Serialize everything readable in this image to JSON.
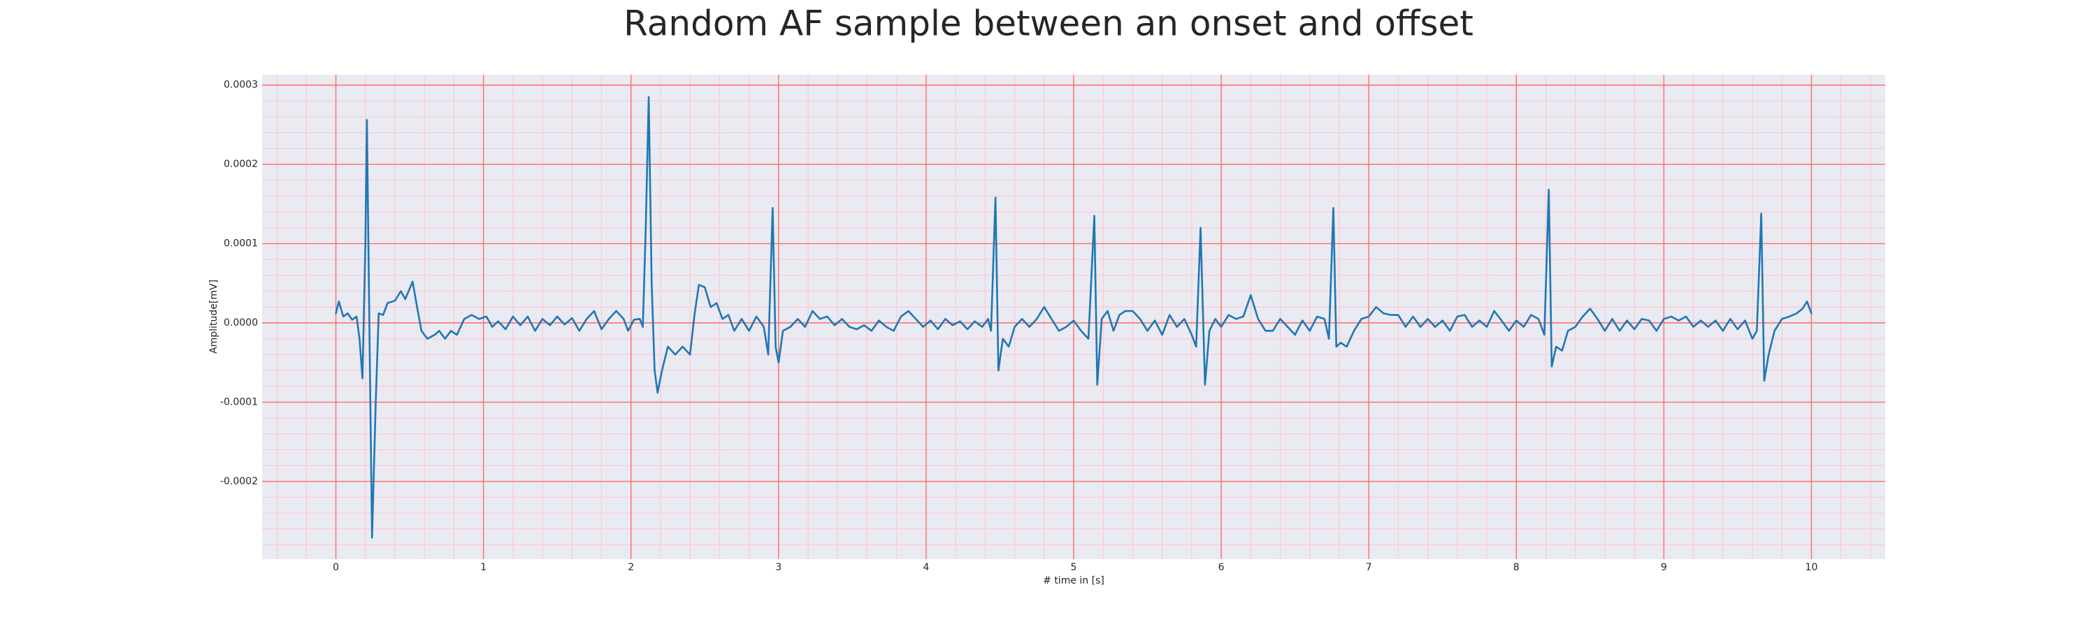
{
  "chart_data": {
    "type": "line",
    "title": "Random AF sample between an onset and offset",
    "xlabel": "# time in [s]",
    "ylabel": "Amplitude[mV]",
    "color": "#1f77b4",
    "grid": true,
    "minor_grid": true,
    "major_grid_color": "#ff6b6b",
    "minor_grid_color": "#ffc4cc",
    "background": "#eaeaf2",
    "xlim": [
      -0.5,
      10.5
    ],
    "ylim": [
      -0.000298,
      0.000313
    ],
    "xticks": [
      0,
      1,
      2,
      3,
      4,
      5,
      6,
      7,
      8,
      9,
      10
    ],
    "yticks": [
      -0.0002,
      -0.0001,
      {
        "value": 0,
        "label": "0.0000"
      },
      0.0001,
      0.0002,
      0.0003
    ],
    "xminorticks": [
      -0.4,
      -0.2,
      0.2,
      0.4,
      0.6,
      0.8,
      1.2,
      1.4,
      1.6,
      1.8,
      2.2,
      2.4,
      2.6,
      2.8,
      3.2,
      3.4,
      3.6,
      3.8,
      4.2,
      4.4,
      4.6,
      4.8,
      5.2,
      5.4,
      5.6,
      5.8,
      6.2,
      6.4,
      6.6,
      6.8,
      7.2,
      7.4,
      7.6,
      7.8,
      8.2,
      8.4,
      8.6,
      8.8,
      9.2,
      9.4,
      9.6,
      9.8,
      10.2,
      10.4
    ],
    "yminorticks": [
      -0.00028,
      -0.00026,
      -0.00024,
      -0.00022,
      -0.00018,
      -0.00016,
      -0.00014,
      -0.00012,
      -8e-05,
      -6e-05,
      -4e-05,
      -2e-05,
      2e-05,
      4e-05,
      6e-05,
      8e-05,
      0.00012,
      0.00014,
      0.00016,
      0.00018,
      0.00022,
      0.00024,
      0.00026,
      0.00028
    ],
    "x": [
      0.0,
      0.02,
      0.05,
      0.08,
      0.11,
      0.14,
      0.16,
      0.18,
      0.2,
      0.21,
      0.23,
      0.245,
      0.27,
      0.29,
      0.32,
      0.35,
      0.4,
      0.44,
      0.47,
      0.52,
      0.55,
      0.58,
      0.62,
      0.67,
      0.7,
      0.74,
      0.78,
      0.82,
      0.87,
      0.92,
      0.97,
      1.02,
      1.06,
      1.1,
      1.15,
      1.2,
      1.25,
      1.3,
      1.35,
      1.4,
      1.45,
      1.5,
      1.55,
      1.6,
      1.65,
      1.7,
      1.75,
      1.8,
      1.85,
      1.9,
      1.95,
      1.98,
      2.02,
      2.06,
      2.08,
      2.1,
      2.12,
      2.14,
      2.16,
      2.18,
      2.21,
      2.25,
      2.3,
      2.35,
      2.4,
      2.43,
      2.46,
      2.5,
      2.54,
      2.58,
      2.62,
      2.66,
      2.7,
      2.75,
      2.8,
      2.85,
      2.9,
      2.93,
      2.96,
      2.98,
      3.0,
      3.03,
      3.08,
      3.13,
      3.18,
      3.23,
      3.28,
      3.33,
      3.38,
      3.43,
      3.48,
      3.53,
      3.58,
      3.63,
      3.68,
      3.73,
      3.78,
      3.83,
      3.88,
      3.93,
      3.98,
      4.03,
      4.08,
      4.13,
      4.18,
      4.23,
      4.28,
      4.33,
      4.38,
      4.42,
      4.44,
      4.47,
      4.49,
      4.52,
      4.56,
      4.6,
      4.65,
      4.7,
      4.75,
      4.8,
      4.85,
      4.9,
      4.95,
      5.0,
      5.05,
      5.1,
      5.14,
      5.16,
      5.19,
      5.23,
      5.27,
      5.31,
      5.35,
      5.4,
      5.45,
      5.5,
      5.55,
      5.6,
      5.65,
      5.7,
      5.75,
      5.8,
      5.83,
      5.86,
      5.89,
      5.92,
      5.96,
      6.0,
      6.05,
      6.1,
      6.15,
      6.2,
      6.25,
      6.3,
      6.35,
      6.4,
      6.45,
      6.5,
      6.55,
      6.6,
      6.65,
      6.7,
      6.73,
      6.76,
      6.78,
      6.81,
      6.85,
      6.9,
      6.95,
      7.0,
      7.05,
      7.1,
      7.15,
      7.2,
      7.25,
      7.3,
      7.35,
      7.4,
      7.45,
      7.5,
      7.55,
      7.6,
      7.65,
      7.7,
      7.75,
      7.8,
      7.85,
      7.9,
      7.95,
      8.0,
      8.05,
      8.1,
      8.15,
      8.19,
      8.22,
      8.24,
      8.27,
      8.31,
      8.35,
      8.4,
      8.45,
      8.5,
      8.55,
      8.6,
      8.65,
      8.7,
      8.75,
      8.8,
      8.85,
      8.9,
      8.95,
      9.0,
      9.05,
      9.1,
      9.15,
      9.2,
      9.25,
      9.3,
      9.35,
      9.4,
      9.45,
      9.5,
      9.55,
      9.6,
      9.63,
      9.66,
      9.68,
      9.71,
      9.75,
      9.8,
      9.85,
      9.9,
      9.94,
      9.97,
      10.0
    ],
    "values": [
      1.2e-05,
      2.7e-05,
      8e-06,
      1.2e-05,
      4e-06,
      8e-06,
      -2e-05,
      -7e-05,
      0.0001,
      0.000256,
      -5e-05,
      -0.000271,
      -0.0001,
      1.2e-05,
      1e-05,
      2.5e-05,
      2.8e-05,
      4e-05,
      3e-05,
      5.2e-05,
      2e-05,
      -1e-05,
      -2e-05,
      -1.5e-05,
      -1e-05,
      -2e-05,
      -1e-05,
      -1.5e-05,
      5e-06,
      1e-05,
      5e-06,
      8e-06,
      -5e-06,
      2e-06,
      -8e-06,
      8e-06,
      -3e-06,
      8e-06,
      -1e-05,
      5e-06,
      -3e-06,
      8e-06,
      -2e-06,
      6e-06,
      -1e-05,
      5e-06,
      1.5e-05,
      -8e-06,
      5e-06,
      1.5e-05,
      5e-06,
      -1e-05,
      4e-06,
      5e-06,
      -5e-06,
      0.00012,
      0.000285,
      5e-05,
      -6e-05,
      -8.8e-05,
      -6e-05,
      -3e-05,
      -4e-05,
      -3e-05,
      -4e-05,
      1e-05,
      4.8e-05,
      4.5e-05,
      2e-05,
      2.5e-05,
      5e-06,
      1e-05,
      -1e-05,
      5e-06,
      -1e-05,
      8e-06,
      -5e-06,
      -4e-05,
      0.000145,
      -3e-05,
      -5e-05,
      -1e-05,
      -5e-06,
      5e-06,
      -5e-06,
      1.5e-05,
      5e-06,
      8e-06,
      -3e-06,
      5e-06,
      -5e-06,
      -8e-06,
      -3e-06,
      -1e-05,
      3e-06,
      -5e-06,
      -1e-05,
      8e-06,
      1.5e-05,
      5e-06,
      -5e-06,
      3e-06,
      -8e-06,
      5e-06,
      -3e-06,
      2e-06,
      -8e-06,
      2e-06,
      -5e-06,
      5e-06,
      -1e-05,
      0.000158,
      -6e-05,
      -2e-05,
      -3e-05,
      -5e-06,
      5e-06,
      -5e-06,
      5e-06,
      2e-05,
      5e-06,
      -1e-05,
      -5e-06,
      3e-06,
      -1e-05,
      -2e-05,
      0.000135,
      -7.8e-05,
      5e-06,
      1.5e-05,
      -1e-05,
      1e-05,
      1.5e-05,
      1.5e-05,
      5e-06,
      -1e-05,
      3e-06,
      -1.5e-05,
      1e-05,
      -5e-06,
      5e-06,
      -1.5e-05,
      -3e-05,
      0.00012,
      -7.8e-05,
      -1e-05,
      5e-06,
      -5e-06,
      1e-05,
      5e-06,
      8e-06,
      3.5e-05,
      5e-06,
      -1e-05,
      -1e-05,
      5e-06,
      -5e-06,
      -1.5e-05,
      3e-06,
      -1e-05,
      8e-06,
      5e-06,
      -2e-05,
      0.000145,
      -3e-05,
      -2.5e-05,
      -3e-05,
      -1e-05,
      5e-06,
      8e-06,
      2e-05,
      1.2e-05,
      1e-05,
      1e-05,
      -5e-06,
      8e-06,
      -5e-06,
      5e-06,
      -5e-06,
      3e-06,
      -1e-05,
      8e-06,
      1e-05,
      -5e-06,
      3e-06,
      -5e-06,
      1.5e-05,
      3e-06,
      -1e-05,
      3e-06,
      -5e-06,
      1e-05,
      5e-06,
      -1.5e-05,
      0.000168,
      -5.5e-05,
      -3e-05,
      -3.5e-05,
      -1e-05,
      -5e-06,
      8e-06,
      1.8e-05,
      5e-06,
      -1e-05,
      5e-06,
      -1e-05,
      3e-06,
      -8e-06,
      5e-06,
      3e-06,
      -1e-05,
      5e-06,
      8e-06,
      3e-06,
      8e-06,
      -5e-06,
      3e-06,
      -5e-06,
      3e-06,
      -1e-05,
      5e-06,
      -8e-06,
      3e-06,
      -2e-05,
      -1e-05,
      0.000138,
      -7.3e-05,
      -4e-05,
      -1e-05,
      5e-06,
      8e-06,
      1.2e-05,
      1.8e-05,
      2.7e-05,
      1.2e-05
    ]
  }
}
